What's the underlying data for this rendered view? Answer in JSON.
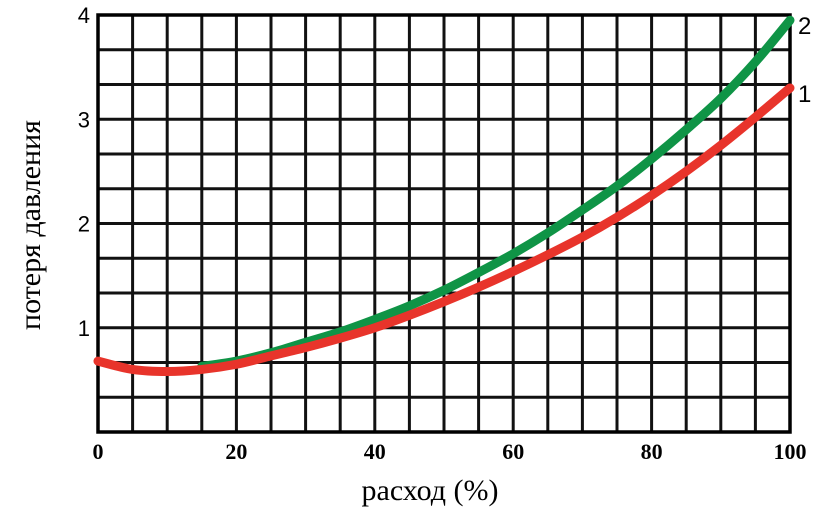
{
  "chart_data": {
    "type": "line",
    "title": "",
    "xlabel": "расход (%)",
    "ylabel": "потеря давления",
    "xlim": [
      0,
      100
    ],
    "ylim": [
      0,
      4
    ],
    "grid": true,
    "x_ticks": [
      "0",
      "20",
      "40",
      "60",
      "80",
      "100"
    ],
    "y_ticks": [
      "1",
      "2",
      "3",
      "4"
    ],
    "series": [
      {
        "name": "1",
        "color": "#e8342b",
        "x": [
          0,
          5,
          10,
          15,
          20,
          25,
          30,
          35,
          40,
          45,
          50,
          55,
          60,
          65,
          70,
          75,
          80,
          85,
          90,
          95,
          100
        ],
        "y": [
          0.68,
          0.6,
          0.58,
          0.6,
          0.65,
          0.73,
          0.81,
          0.9,
          1.0,
          1.12,
          1.25,
          1.39,
          1.54,
          1.7,
          1.87,
          2.06,
          2.27,
          2.5,
          2.75,
          3.02,
          3.3
        ]
      },
      {
        "name": "2",
        "color": "#0f9446",
        "x": [
          15,
          20,
          25,
          30,
          35,
          40,
          45,
          50,
          55,
          60,
          65,
          70,
          75,
          80,
          85,
          90,
          95,
          100
        ],
        "y": [
          0.63,
          0.68,
          0.76,
          0.86,
          0.96,
          1.08,
          1.21,
          1.36,
          1.53,
          1.71,
          1.91,
          2.13,
          2.36,
          2.62,
          2.9,
          3.2,
          3.55,
          3.95
        ]
      }
    ]
  }
}
